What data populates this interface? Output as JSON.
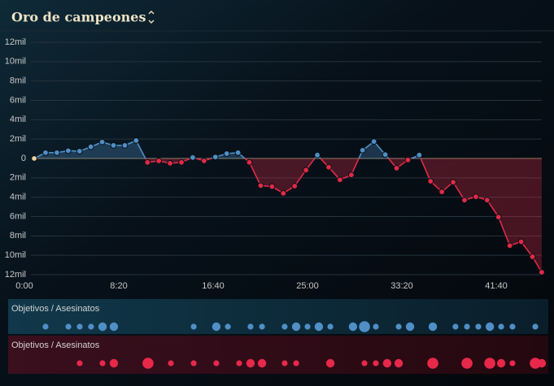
{
  "chart_data": {
    "type": "line",
    "title": "Oro de campeones",
    "x": [
      52,
      112,
      172,
      232,
      292,
      352,
      412,
      472,
      532,
      592,
      652,
      712,
      772,
      832,
      892,
      952,
      1012,
      1072,
      1132,
      1192,
      1252,
      1312,
      1372,
      1432,
      1492,
      1552,
      1612,
      1672,
      1732,
      1792,
      1852,
      1912,
      1972,
      2032,
      2092,
      2152,
      2212,
      2272,
      2332,
      2392,
      2452,
      2512,
      2572,
      2632,
      2692,
      2741
    ],
    "values": [
      0,
      600,
      600,
      800,
      750,
      1200,
      1700,
      1350,
      1350,
      1850,
      -400,
      -250,
      -500,
      -400,
      100,
      -250,
      150,
      500,
      600,
      -400,
      -2800,
      -2900,
      -3600,
      -2850,
      -1200,
      350,
      -900,
      -2200,
      -1700,
      850,
      1750,
      400,
      -1000,
      -150,
      350,
      -2350,
      -3450,
      -2450,
      -4300,
      -3950,
      -4300,
      -6050,
      -9000,
      -8600,
      -10150,
      -11750
    ],
    "colors": {
      "positive": "#4f8fc6",
      "negative": "#e02a48",
      "zero": "#e6d3a3"
    },
    "xlim": [
      0,
      2750
    ],
    "xticks": [
      {
        "value": 0,
        "label": "0:00"
      },
      {
        "value": 500,
        "label": "8:20"
      },
      {
        "value": 1000,
        "label": "16:40"
      },
      {
        "value": 1500,
        "label": "25:00"
      },
      {
        "value": 2000,
        "label": "33:20"
      },
      {
        "value": 2500,
        "label": "41:40"
      }
    ],
    "ylim": [
      -12000,
      12000
    ],
    "yticks": [
      {
        "value": 12000,
        "label": "12mil"
      },
      {
        "value": 10000,
        "label": "10mil"
      },
      {
        "value": 8000,
        "label": "8mil"
      },
      {
        "value": 6000,
        "label": "6mil"
      },
      {
        "value": 4000,
        "label": "4mil"
      },
      {
        "value": 2000,
        "label": "2mil"
      },
      0,
      {
        "value": -2000,
        "label": "2mil"
      },
      {
        "value": -4000,
        "label": "4mil"
      },
      {
        "value": -6000,
        "label": "6mil"
      },
      {
        "value": -8000,
        "label": "8mil"
      },
      {
        "value": -10000,
        "label": "10mil"
      },
      {
        "value": -12000,
        "label": "12mil"
      }
    ],
    "grid": true,
    "events": [
      {
        "label": "Objetivos / Asesinatos",
        "color": "#4f8fc6",
        "x": [
          112,
          233,
          293,
          353,
          414,
          474,
          897,
          1017,
          1078,
          1198,
          1259,
          1379,
          1440,
          1500,
          1560,
          1621,
          1741,
          1802,
          1862,
          1983,
          2043,
          2164,
          2284,
          2345,
          2405,
          2466,
          2526,
          2586,
          2707
        ],
        "sizes": [
          1,
          1,
          1,
          1,
          2,
          2,
          1,
          2,
          1,
          1,
          1,
          1,
          2,
          1,
          2,
          1,
          2,
          3,
          1,
          1,
          2,
          2,
          1,
          1,
          1,
          2,
          1,
          1,
          1
        ]
      },
      {
        "label": "Objetivos / Asesinatos",
        "color": "#e8284a",
        "x": [
          293,
          414,
          474,
          655,
          776,
          897,
          1017,
          1138,
          1198,
          1259,
          1379,
          1440,
          1621,
          1802,
          1862,
          1922,
          1983,
          2164,
          2345,
          2466,
          2526,
          2586,
          2707,
          2741
        ],
        "sizes": [
          1,
          1,
          2,
          3,
          1,
          1,
          1,
          1,
          2,
          2,
          1,
          1,
          2,
          1,
          1,
          2,
          2,
          3,
          3,
          3,
          2,
          1,
          3,
          2
        ]
      }
    ]
  }
}
